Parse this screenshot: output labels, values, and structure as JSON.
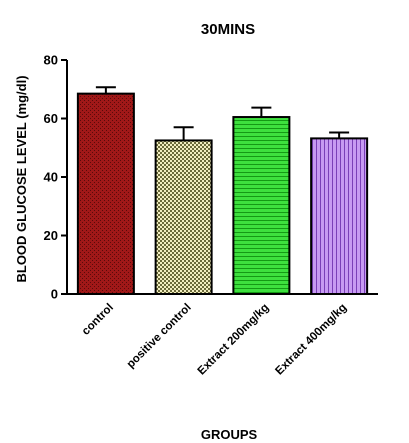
{
  "chart_data": {
    "type": "bar",
    "title": "30MINS",
    "xlabel": "GROUPS",
    "ylabel": "BLOOD GLUCOSE LEVEL (mg/dl)",
    "ylim": [
      0,
      80
    ],
    "yticks": [
      "0",
      "20",
      "40",
      "60",
      "80"
    ],
    "categories": [
      "control",
      "positive control",
      "Extract 200mg/kg",
      "Extract 400mg/kg"
    ],
    "values": [
      68.5,
      52.5,
      60.5,
      53.2
    ],
    "errors": [
      2.2,
      4.5,
      3.2,
      2.0
    ],
    "colors": [
      "#9b1b1b",
      "#e8e2a6",
      "#33d633",
      "#bb88ee"
    ],
    "patterns": [
      "brick-dots",
      "checker",
      "horizontal-lines",
      "vertical-lines"
    ],
    "grid": false,
    "legend": "none"
  }
}
